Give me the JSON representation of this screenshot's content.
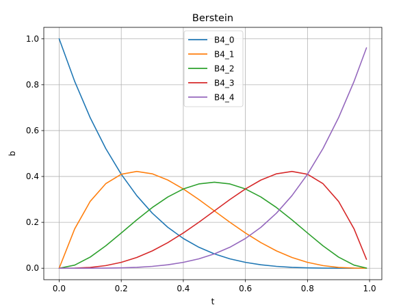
{
  "chart_data": {
    "type": "line",
    "title": "Berstein",
    "xlabel": "t",
    "ylabel": "b",
    "xlim": [
      -0.0495,
      1.0395
    ],
    "ylim": [
      -0.05,
      1.05
    ],
    "xticks": [
      0.0,
      0.2,
      0.4,
      0.6,
      0.8,
      1.0
    ],
    "xtick_labels": [
      "0.0",
      "0.2",
      "0.4",
      "0.6",
      "0.8",
      "1.0"
    ],
    "yticks": [
      0.0,
      0.2,
      0.4,
      0.6,
      0.8,
      1.0
    ],
    "ytick_labels": [
      "0.0",
      "0.2",
      "0.4",
      "0.6",
      "0.8",
      "1.0"
    ],
    "grid": true,
    "legend_position": "top-center",
    "x": [
      0.0,
      0.05,
      0.1,
      0.15,
      0.2,
      0.25,
      0.3,
      0.35,
      0.4,
      0.45,
      0.5,
      0.55,
      0.6,
      0.65,
      0.7,
      0.75,
      0.8,
      0.85,
      0.9,
      0.95,
      0.99
    ],
    "series": [
      {
        "name": "B4_0",
        "color": "#1f77b4",
        "values": [
          1.0,
          0.8145,
          0.6561,
          0.522,
          0.4096,
          0.3164,
          0.2401,
          0.1785,
          0.1296,
          0.0915,
          0.0625,
          0.041,
          0.0256,
          0.015,
          0.0081,
          0.0039,
          0.0016,
          0.0005,
          0.0001,
          0.0,
          0.0
        ]
      },
      {
        "name": "B4_1",
        "color": "#ff7f0e",
        "values": [
          0.0,
          0.1715,
          0.2916,
          0.3685,
          0.4096,
          0.4219,
          0.4116,
          0.3845,
          0.3456,
          0.2995,
          0.25,
          0.2005,
          0.1536,
          0.1115,
          0.0756,
          0.0469,
          0.0256,
          0.0115,
          0.0036,
          0.0005,
          0.0
        ]
      },
      {
        "name": "B4_2",
        "color": "#2ca02c",
        "values": [
          0.0,
          0.0135,
          0.0486,
          0.0975,
          0.1536,
          0.2109,
          0.2646,
          0.3105,
          0.3456,
          0.3675,
          0.375,
          0.3675,
          0.3456,
          0.3105,
          0.2646,
          0.2109,
          0.1536,
          0.0975,
          0.0486,
          0.0135,
          0.0006
        ]
      },
      {
        "name": "B4_3",
        "color": "#d62728",
        "values": [
          0.0,
          0.0005,
          0.0036,
          0.0115,
          0.0256,
          0.0469,
          0.0756,
          0.1115,
          0.1536,
          0.2005,
          0.25,
          0.2995,
          0.3456,
          0.3845,
          0.4116,
          0.4219,
          0.4096,
          0.3685,
          0.2916,
          0.1715,
          0.0388
        ]
      },
      {
        "name": "B4_4",
        "color": "#9467bd",
        "values": [
          0.0,
          0.0,
          0.0001,
          0.0005,
          0.0016,
          0.0039,
          0.0081,
          0.015,
          0.0256,
          0.041,
          0.0625,
          0.0915,
          0.1296,
          0.1785,
          0.2401,
          0.3164,
          0.4096,
          0.522,
          0.6561,
          0.8145,
          0.9606
        ]
      }
    ]
  }
}
